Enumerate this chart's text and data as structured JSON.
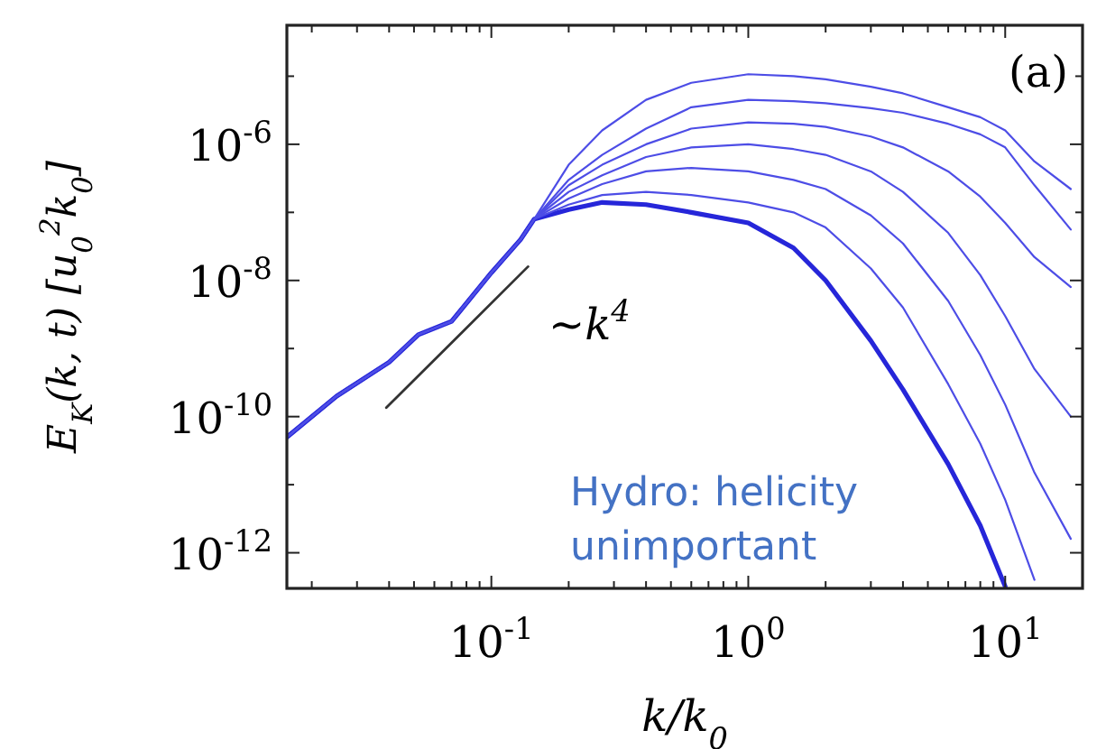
{
  "chart_data": {
    "type": "line",
    "xlabel": "k/k$_{0}$",
    "ylabel": "E$_{K}$(k, t)   [u$_{0}$$^{2}$k$_{0}$]",
    "log": "xy",
    "grid": false,
    "marker": "none",
    "line_style": "solid",
    "xlim": [
      0.016,
      20
    ],
    "ylim": [
      3e-13,
      5.6e-05
    ],
    "xticks": [
      {
        "value": 0.02,
        "label": null
      },
      {
        "value": 0.03,
        "label": null
      },
      {
        "value": 0.04,
        "label": null
      },
      {
        "value": 0.05,
        "label": null
      },
      {
        "value": 0.06,
        "label": null
      },
      {
        "value": 0.07,
        "label": null
      },
      {
        "value": 0.08,
        "label": null
      },
      {
        "value": 0.09,
        "label": null
      },
      {
        "value": 0.1,
        "label": "10$^{-1}$"
      },
      {
        "value": 0.2,
        "label": null
      },
      {
        "value": 0.3,
        "label": null
      },
      {
        "value": 0.4,
        "label": null
      },
      {
        "value": 0.5,
        "label": null
      },
      {
        "value": 0.6,
        "label": null
      },
      {
        "value": 0.7,
        "label": null
      },
      {
        "value": 0.8,
        "label": null
      },
      {
        "value": 0.9,
        "label": null
      },
      {
        "value": 1,
        "label": "10$^{0}$"
      },
      {
        "value": 2,
        "label": null
      },
      {
        "value": 3,
        "label": null
      },
      {
        "value": 4,
        "label": null
      },
      {
        "value": 5,
        "label": null
      },
      {
        "value": 6,
        "label": null
      },
      {
        "value": 7,
        "label": null
      },
      {
        "value": 8,
        "label": null
      },
      {
        "value": 9,
        "label": null
      },
      {
        "value": 10,
        "label": "10$^{1}$"
      }
    ],
    "yticks": [
      {
        "value": 1e-12,
        "label": "10$^{-12}$"
      },
      {
        "value": 1e-11,
        "label": null
      },
      {
        "value": 1e-10,
        "label": "10$^{-10}$"
      },
      {
        "value": 1e-09,
        "label": null
      },
      {
        "value": 1e-08,
        "label": "10$^{-8}$"
      },
      {
        "value": 1e-07,
        "label": null
      },
      {
        "value": 1e-06,
        "label": "10$^{-6}$"
      },
      {
        "value": 1e-05,
        "label": null
      }
    ],
    "x": [
      0.016,
      0.025,
      0.04,
      0.052,
      0.07,
      0.1,
      0.13,
      0.147,
      0.2,
      0.27,
      0.4,
      0.6,
      1,
      1.5,
      2,
      3,
      4,
      6,
      8,
      10,
      13,
      18
    ],
    "series": [
      {
        "color": "#2626d9",
        "values": [
          5e-11,
          2e-10,
          6.3e-10,
          1.6e-09,
          2.5e-09,
          1.3e-08,
          4e-08,
          8e-08,
          1.1e-07,
          1.4e-07,
          1.3e-07,
          1e-07,
          7e-08,
          3e-08,
          1e-08,
          1.3e-09,
          2.5e-10,
          2e-11,
          2.5e-12,
          3.2e-13,
          null,
          null
        ]
      },
      {
        "color": "#4d4de6",
        "values": [
          5e-11,
          2e-10,
          6.3e-10,
          1.6e-09,
          2.5e-09,
          1.3e-08,
          4e-08,
          8e-08,
          1.3e-07,
          1.8e-07,
          2e-07,
          1.8e-07,
          1.4e-07,
          1e-07,
          6e-08,
          1.5e-08,
          4e-09,
          3e-10,
          4e-11,
          6e-12,
          4e-13,
          null
        ]
      },
      {
        "color": "#4d4de6",
        "values": [
          5e-11,
          2e-10,
          6.3e-10,
          1.6e-09,
          2.5e-09,
          1.3e-08,
          4e-08,
          8e-08,
          1.6e-07,
          2.6e-07,
          4e-07,
          4.5e-07,
          4e-07,
          3e-07,
          2.2e-07,
          9e-08,
          3.5e-08,
          5e-09,
          8e-10,
          1.5e-10,
          1.5e-11,
          1.6e-12
        ]
      },
      {
        "color": "#4d4de6",
        "values": [
          5e-11,
          2e-10,
          6.3e-10,
          1.6e-09,
          2.5e-09,
          1.3e-08,
          4e-08,
          8e-08,
          2e-07,
          3.5e-07,
          6.5e-07,
          9e-07,
          1e-06,
          8.5e-07,
          7e-07,
          4e-07,
          2e-07,
          5e-08,
          1.2e-08,
          3e-09,
          5e-10,
          1e-10
        ]
      },
      {
        "color": "#4d4de6",
        "values": [
          5e-11,
          2e-10,
          6.3e-10,
          1.6e-09,
          2.5e-09,
          1.3e-08,
          4e-08,
          8e-08,
          2.5e-07,
          5e-07,
          1e-06,
          1.7e-06,
          2.1e-06,
          2e-06,
          1.8e-06,
          1.3e-06,
          9e-07,
          4e-07,
          1.7e-07,
          7e-08,
          2.2e-08,
          8e-09
        ]
      },
      {
        "color": "#4d4de6",
        "values": [
          5e-11,
          2e-10,
          6.3e-10,
          1.6e-09,
          2.5e-09,
          1.3e-08,
          4e-08,
          8e-08,
          3e-07,
          7e-07,
          1.7e-06,
          3.5e-06,
          4.5e-06,
          4.3e-06,
          4e-06,
          3.4e-06,
          2.9e-06,
          2e-06,
          1.4e-06,
          9e-07,
          2.5e-07,
          5.6e-08
        ]
      },
      {
        "color": "#4d4de6",
        "values": [
          5e-11,
          2e-10,
          6.3e-10,
          1.6e-09,
          2.5e-09,
          1.3e-08,
          4e-08,
          8e-08,
          5e-07,
          1.6e-06,
          4.5e-06,
          8e-06,
          1.07e-05,
          1e-05,
          9e-06,
          7e-06,
          5.6e-06,
          3.5e-06,
          2.5e-06,
          1.6e-06,
          5.6e-07,
          2.2e-07
        ]
      },
      {
        "type": "line",
        "color": "#333333",
        "x": [
          0.039,
          0.139
        ],
        "values": [
          1.35e-10,
          1.6e-08
        ]
      }
    ],
    "annotations": [
      "∼k$^{4}$",
      "(a)",
      "Hydro: helicity unimportant"
    ]
  }
}
